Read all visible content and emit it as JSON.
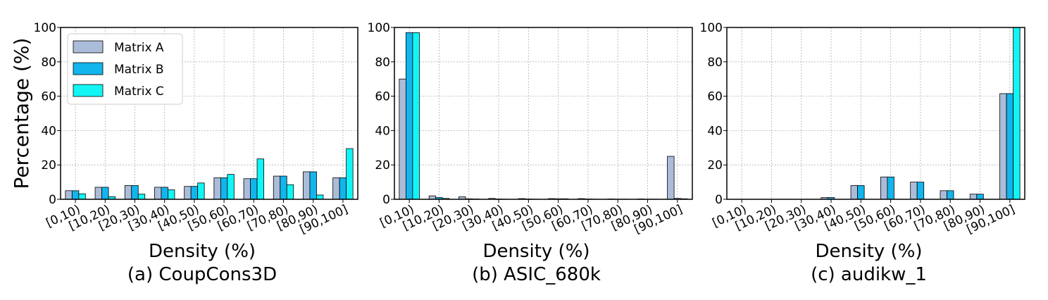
{
  "colors": {
    "Matrix A": "#aabcd8",
    "Matrix B": "#12b5ec",
    "Matrix C": "#12f5f5",
    "grid": "#b0b0b0",
    "edge": "#000000"
  },
  "chart_data": [
    {
      "type": "bar",
      "caption": "(a) CoupCons3D",
      "xlabel": "Density (%)",
      "ylabel": "Percentage (%)",
      "ylim": [
        0,
        100
      ],
      "yticks": [
        "0",
        "20",
        "40",
        "60",
        "80",
        "100"
      ],
      "grid": true,
      "legend": "top-left",
      "categories": [
        "[0,10)",
        "[10,20)",
        "[20,30)",
        "[30,40)",
        "[40,50)",
        "[50,60)",
        "[60,70)",
        "[70,80)",
        "[80,90)",
        "[90,100]"
      ],
      "series": [
        {
          "name": "Matrix A",
          "values": [
            5,
            7,
            8,
            7,
            7.5,
            12.5,
            12,
            13.5,
            16,
            12.5
          ]
        },
        {
          "name": "Matrix B",
          "values": [
            5,
            7,
            8,
            7,
            7.5,
            12.5,
            12,
            13.5,
            16,
            12.5
          ]
        },
        {
          "name": "Matrix C",
          "values": [
            3.2,
            1.5,
            3,
            5.5,
            9.5,
            14.5,
            23.5,
            8.5,
            2.5,
            29.5
          ]
        }
      ]
    },
    {
      "type": "bar",
      "caption": "(b) ASIC_680k",
      "xlabel": "Density (%)",
      "ylabel": "",
      "ylim": [
        0,
        100
      ],
      "yticks": [
        "0",
        "20",
        "40",
        "60",
        "80",
        "100"
      ],
      "grid": true,
      "categories": [
        "[0,10)",
        "[10,20)",
        "[20,30)",
        "[30,40)",
        "[40,50)",
        "[50,60)",
        "[60,70)",
        "[70,80)",
        "[80,90)",
        "[90,100]"
      ],
      "series": [
        {
          "name": "Matrix A",
          "values": [
            70,
            2,
            1.5,
            0.5,
            0.4,
            0.4,
            0.4,
            0.2,
            0.2,
            25
          ]
        },
        {
          "name": "Matrix B",
          "values": [
            97,
            1,
            0.3,
            0.2,
            0.2,
            0.3,
            0.2,
            0.1,
            0.1,
            0.5
          ]
        },
        {
          "name": "Matrix C",
          "values": [
            97,
            0.5,
            0.2,
            0.1,
            0.1,
            0.3,
            0.1,
            0.1,
            0.1,
            0.3
          ]
        }
      ]
    },
    {
      "type": "bar",
      "caption": "(c) audikw_1",
      "xlabel": "Density (%)",
      "ylabel": "",
      "ylim": [
        0,
        100
      ],
      "yticks": [
        "0",
        "20",
        "40",
        "60",
        "80",
        "100"
      ],
      "grid": true,
      "categories": [
        "[0,10)",
        "[10,20)",
        "[20,30)",
        "[30,40)",
        "[40,50)",
        "[50,60)",
        "[60,70)",
        "[70,80)",
        "[80,90)",
        "[90,100]"
      ],
      "series": [
        {
          "name": "Matrix A",
          "values": [
            0,
            0,
            0,
            1,
            8,
            13,
            10,
            5,
            3,
            61.5
          ]
        },
        {
          "name": "Matrix B",
          "values": [
            0,
            0,
            0,
            1,
            8,
            13,
            10,
            5,
            3,
            61.5
          ]
        },
        {
          "name": "Matrix C",
          "values": [
            0,
            0,
            0,
            0,
            0,
            0,
            0,
            0,
            0,
            100
          ]
        }
      ]
    }
  ]
}
